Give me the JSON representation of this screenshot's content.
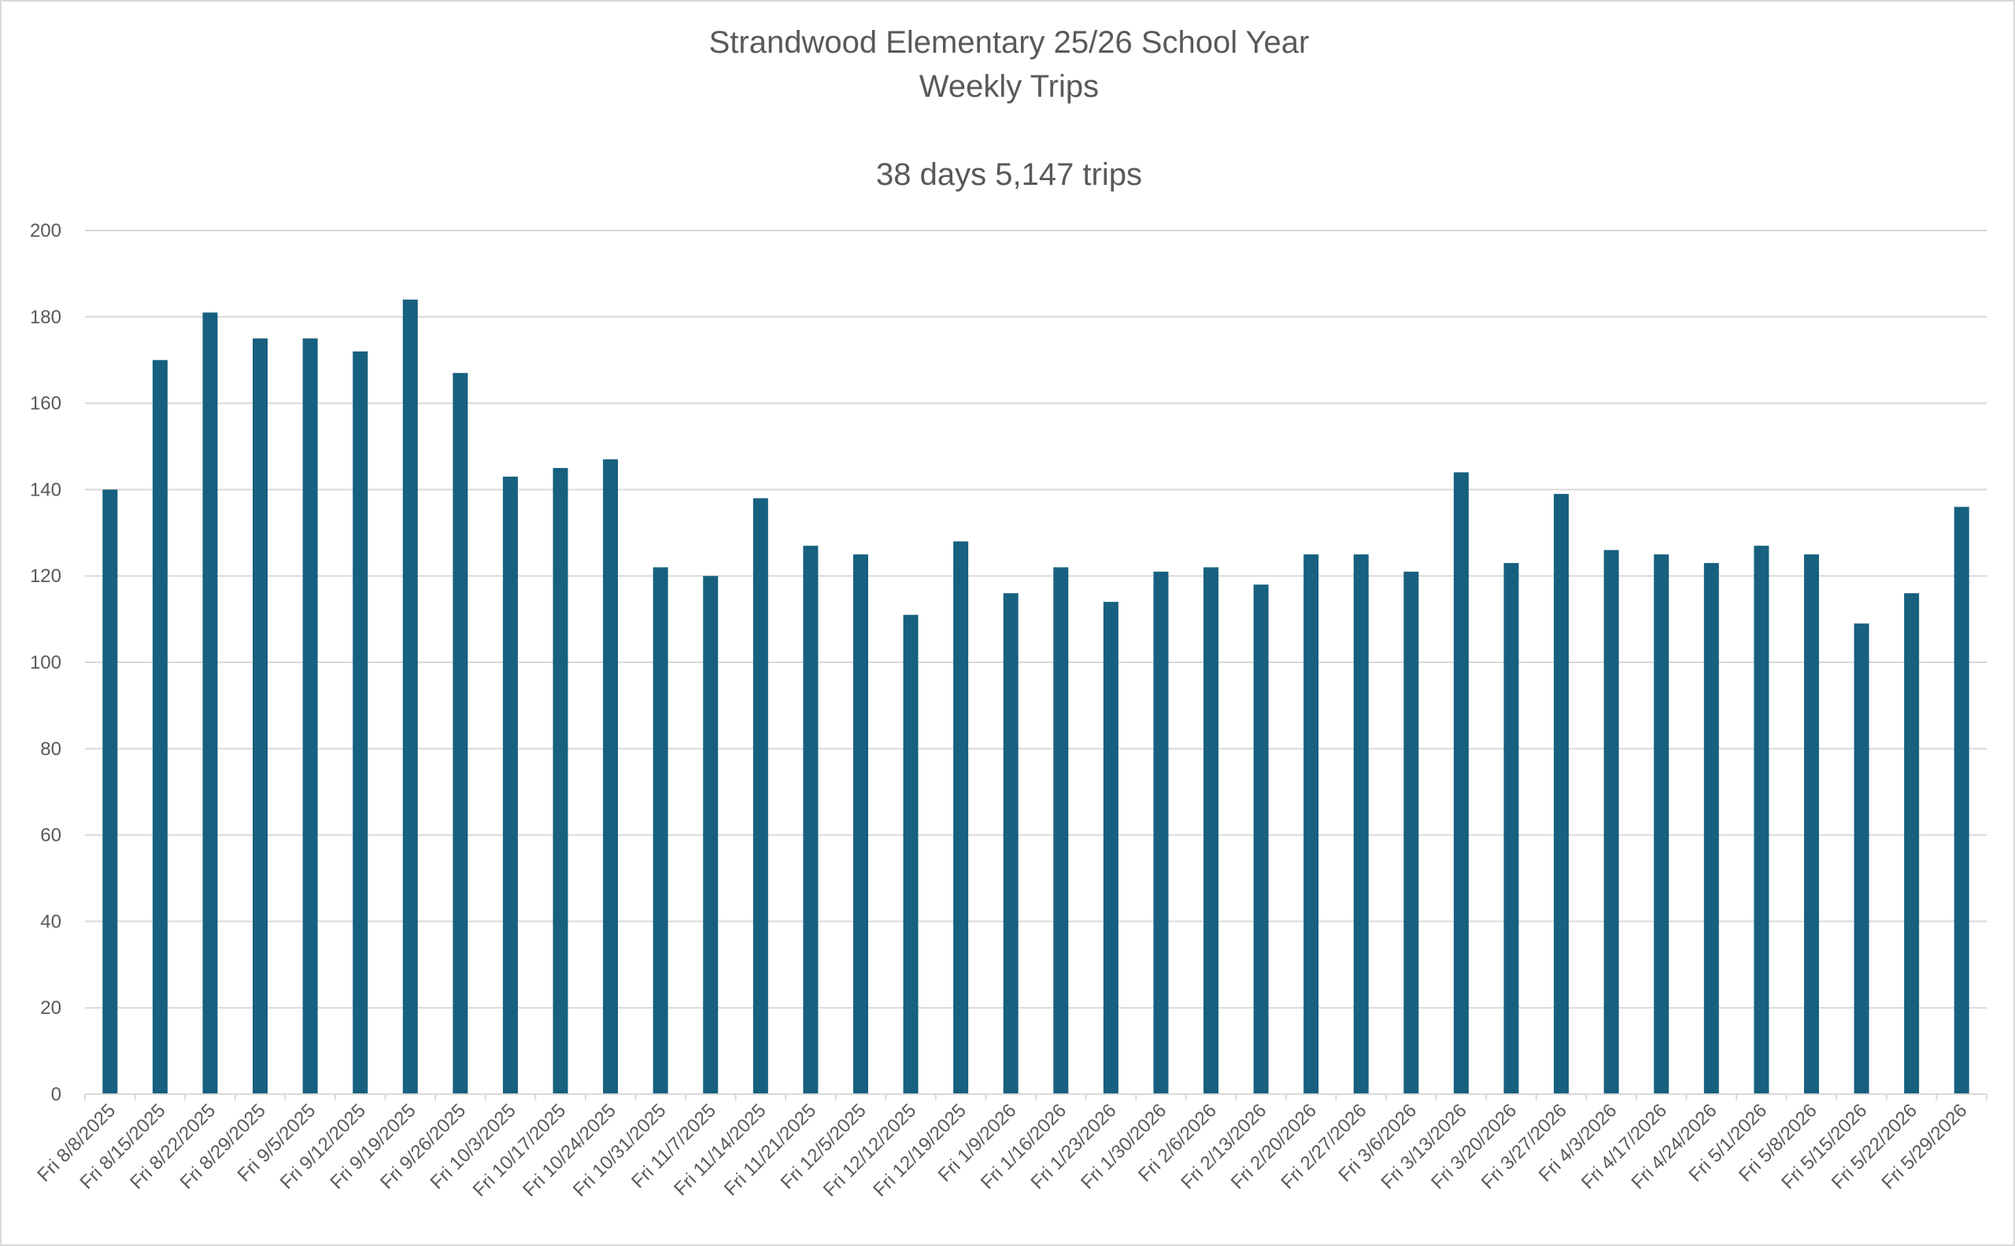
{
  "chart_data": {
    "type": "bar",
    "title": "Strandwood Elementary 25/26 School Year",
    "subtitle": "Weekly Trips",
    "annotation": "38 days 5,147 trips",
    "xlabel": "",
    "ylabel": "",
    "ylim": [
      0,
      200
    ],
    "yticks": [
      "0",
      "20",
      "40",
      "60",
      "80",
      "100",
      "120",
      "140",
      "160",
      "180",
      "200"
    ],
    "grid": true,
    "legend": "none",
    "bar_color": "#17607f",
    "grid_color": "#d9d9d9",
    "categories": [
      "Fri 8/8/2025",
      "Fri 8/15/2025",
      "Fri 8/22/2025",
      "Fri 8/29/2025",
      "Fri 9/5/2025",
      "Fri 9/12/2025",
      "Fri 9/19/2025",
      "Fri 9/26/2025",
      "Fri 10/3/2025",
      "Fri 10/17/2025",
      "Fri 10/24/2025",
      "Fri 10/31/2025",
      "Fri 11/7/2025",
      "Fri 11/14/2025",
      "Fri 11/21/2025",
      "Fri 12/5/2025",
      "Fri 12/12/2025",
      "Fri 12/19/2025",
      "Fri 1/9/2026",
      "Fri 1/16/2026",
      "Fri 1/23/2026",
      "Fri 1/30/2026",
      "Fri 2/6/2026",
      "Fri 2/13/2026",
      "Fri 2/20/2026",
      "Fri 2/27/2026",
      "Fri 3/6/2026",
      "Fri 3/13/2026",
      "Fri 3/20/2026",
      "Fri 3/27/2026",
      "Fri 4/3/2026",
      "Fri 4/17/2026",
      "Fri 4/24/2026",
      "Fri 5/1/2026",
      "Fri 5/8/2026",
      "Fri 5/15/2026",
      "Fri 5/22/2026",
      "Fri 5/29/2026"
    ],
    "values": [
      140,
      170,
      181,
      175,
      175,
      172,
      184,
      167,
      143,
      145,
      147,
      122,
      120,
      138,
      127,
      125,
      111,
      128,
      116,
      122,
      114,
      121,
      122,
      118,
      125,
      125,
      121,
      144,
      123,
      139,
      126,
      125,
      123,
      127,
      125,
      109,
      116,
      136
    ]
  }
}
